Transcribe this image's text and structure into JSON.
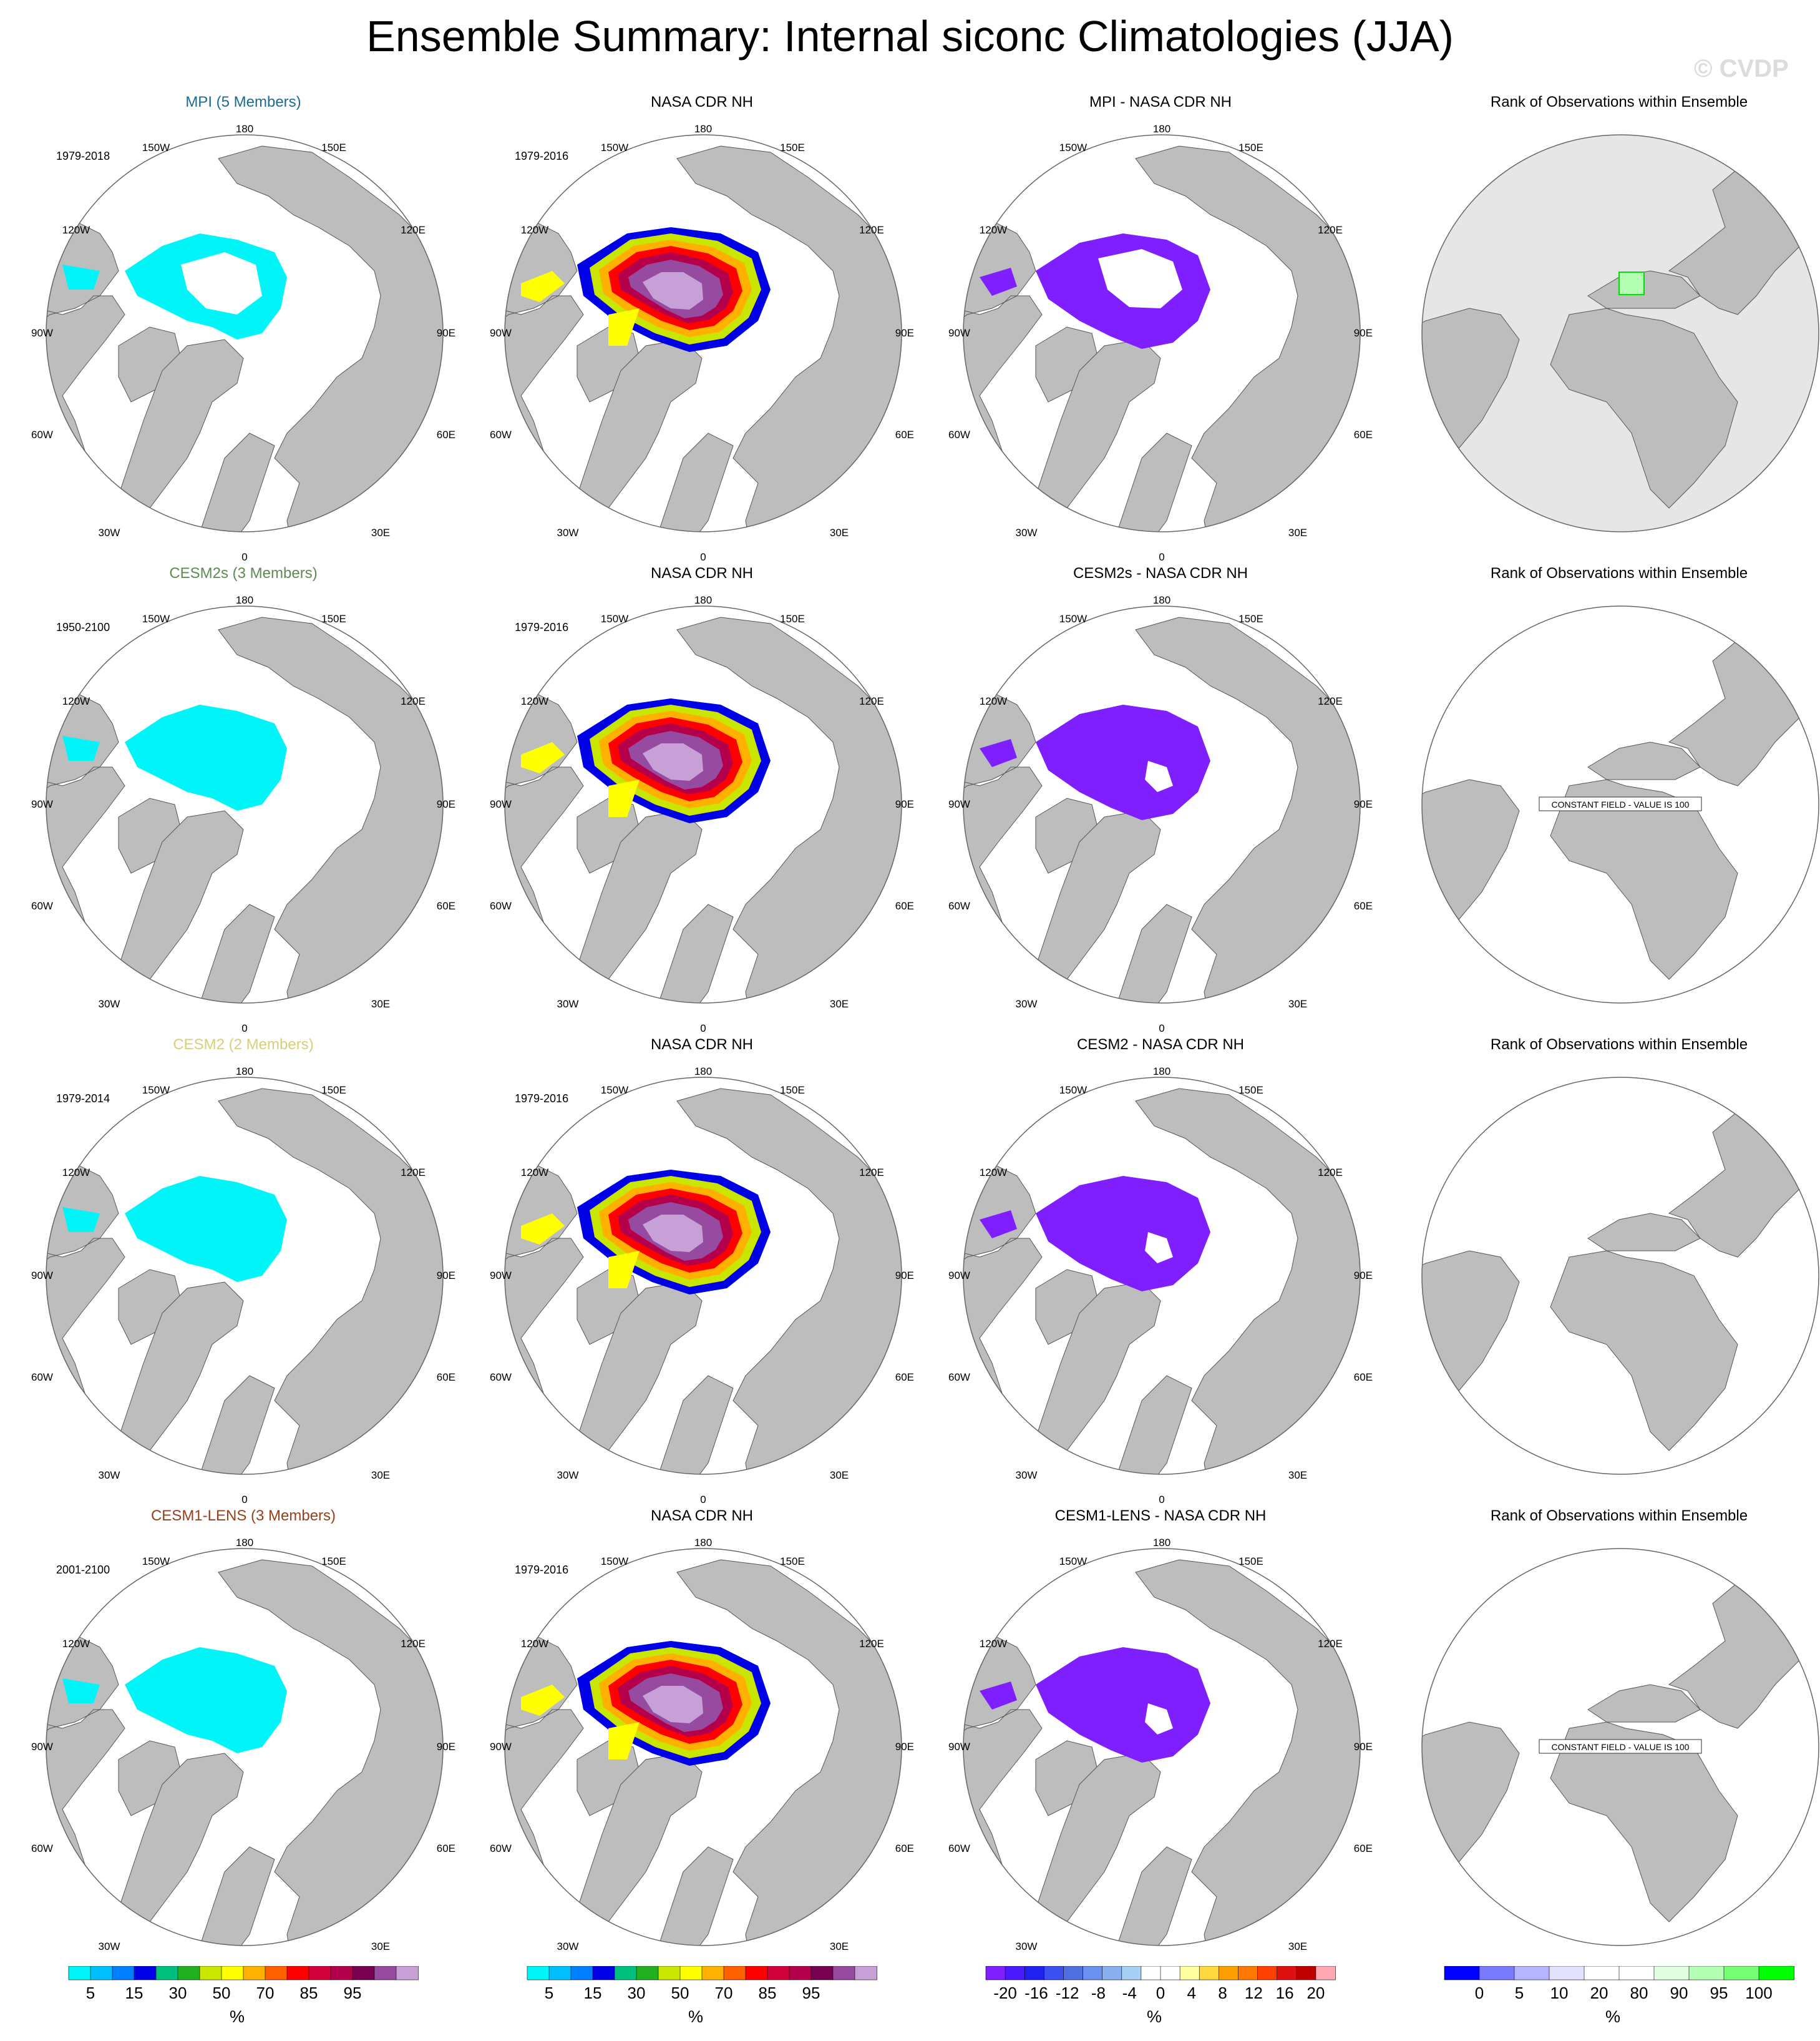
{
  "title": "Ensemble Summary: Internal siconc Climatologies (JJA)",
  "watermark": "© CVDP",
  "colors": {
    "land": "#bdbdbd",
    "cyan_ice": "#00f5f8",
    "diff_purple": "#7f1fff",
    "model_titles": [
      "#1c6a96",
      "#5d8b52",
      "#dccd7a",
      "#96401c"
    ]
  },
  "lon_labels": [
    "180",
    "150W",
    "150E",
    "120W",
    "120E",
    "90W",
    "90E",
    "60W",
    "60E",
    "30W",
    "30E",
    "0"
  ],
  "rank_title": "Rank of Observations within Ensemble",
  "rows": [
    {
      "model_title": "MPI (5 Members)",
      "model_period": "1979-2018",
      "obs_title": "NASA CDR NH",
      "obs_period": "1979-2016",
      "diff_title": "MPI - NASA CDR NH",
      "rank_note": ""
    },
    {
      "model_title": "CESM2s (3 Members)",
      "model_period": "1950-2100",
      "obs_title": "NASA CDR NH",
      "obs_period": "1979-2016",
      "diff_title": "CESM2s - NASA CDR NH",
      "rank_note": "CONSTANT FIELD - VALUE IS 100"
    },
    {
      "model_title": "CESM2 (2 Members)",
      "model_period": "1979-2014",
      "obs_title": "NASA CDR NH",
      "obs_period": "1979-2016",
      "diff_title": "CESM2 - NASA CDR NH",
      "rank_note": ""
    },
    {
      "model_title": "CESM1-LENS (3 Members)",
      "model_period": "2001-2100",
      "obs_title": "NASA CDR NH",
      "obs_period": "1979-2016",
      "diff_title": "CESM1-LENS - NASA CDR NH",
      "rank_note": "CONSTANT FIELD - VALUE IS 100"
    }
  ],
  "chart_data": [
    {
      "type": "heatmap",
      "name": "siconc colorbar",
      "tick_labels": [
        "5",
        "15",
        "30",
        "50",
        "70",
        "85",
        "95"
      ],
      "unit": "%",
      "colors": [
        "#00f5f8",
        "#00bfff",
        "#0080ff",
        "#0000e6",
        "#00c080",
        "#20b020",
        "#c8e600",
        "#ffff00",
        "#ffb000",
        "#ff6000",
        "#ff0000",
        "#d2003c",
        "#b4004b",
        "#780050",
        "#964ba0",
        "#c8a0d8"
      ]
    },
    {
      "type": "heatmap",
      "name": "difference colorbar",
      "tick_labels": [
        "-20",
        "-16",
        "-12",
        "-8",
        "-4",
        "0",
        "4",
        "8",
        "12",
        "16",
        "20"
      ],
      "unit": "%",
      "colors": [
        "#7f1fff",
        "#4a1aff",
        "#2020f0",
        "#3a50f0",
        "#5070e0",
        "#6a90f0",
        "#8ab0f0",
        "#a8d0f4",
        "#ffffff",
        "#ffffff",
        "#ffffa0",
        "#ffd840",
        "#ffa000",
        "#ff7800",
        "#ff4000",
        "#e01010",
        "#c00000",
        "#ffa8b4"
      ]
    },
    {
      "type": "heatmap",
      "name": "rank colorbar",
      "tick_labels": [
        "0",
        "5",
        "10",
        "20",
        "80",
        "90",
        "95",
        "100"
      ],
      "unit": "%",
      "colors": [
        "#0000ff",
        "#7a7aff",
        "#b4b4ff",
        "#e2e2ff",
        "#ffffff",
        "#ffffff",
        "#e2ffe2",
        "#b4ffb4",
        "#78ff78",
        "#00ff00"
      ]
    }
  ]
}
